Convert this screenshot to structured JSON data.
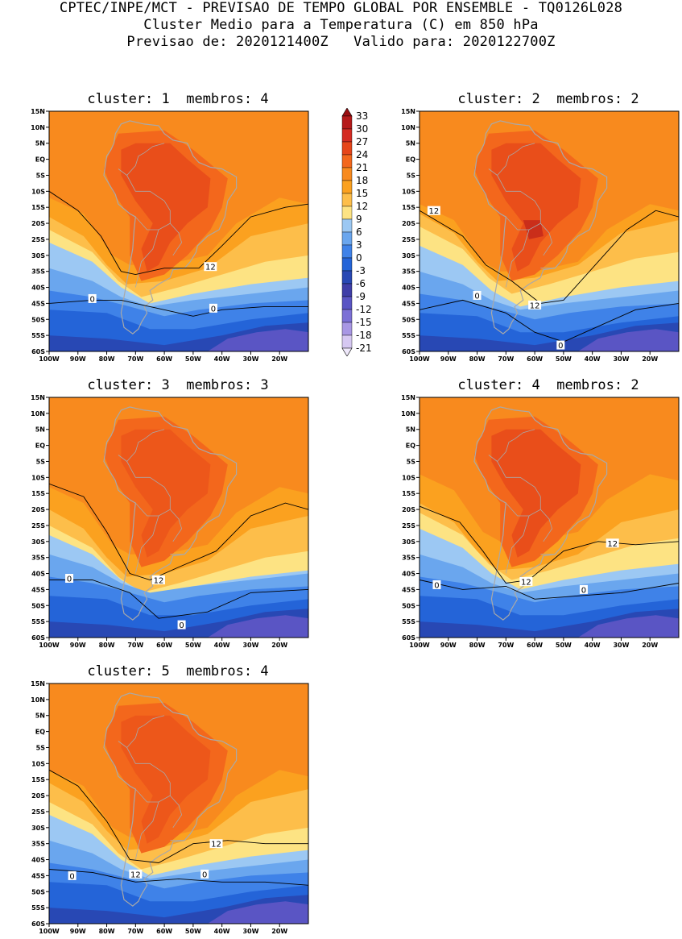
{
  "header": {
    "line1": "CPTEC/INPE/MCT - PREVISAO DE TEMPO GLOBAL POR ENSEMBLE - TQ0126L028",
    "line2": "Cluster Medio para a Temperatura (C) em 850 hPa",
    "line3": "Previsao de: 2020121400Z   Valido para: 2020122700Z"
  },
  "panels": [
    {
      "title": "cluster: 1  membros: 4",
      "contour_labels": [
        "12",
        "0",
        "0"
      ]
    },
    {
      "title": "cluster: 2  membros: 2",
      "contour_labels": [
        "12",
        "0",
        "12",
        "0"
      ]
    },
    {
      "title": "cluster: 3  membros: 3",
      "contour_labels": [
        "0",
        "12",
        "0"
      ]
    },
    {
      "title": "cluster: 4  membros: 2",
      "contour_labels": [
        "12",
        "0",
        "12",
        "0"
      ]
    },
    {
      "title": "cluster: 5  membros: 4",
      "contour_labels": [
        "12",
        "0",
        "12",
        "0"
      ]
    }
  ],
  "lat_ticks": [
    "15N",
    "10N",
    "5N",
    "EQ",
    "5S",
    "10S",
    "15S",
    "20S",
    "25S",
    "30S",
    "35S",
    "40S",
    "45S",
    "50S",
    "55S",
    "60S"
  ],
  "lon_ticks": [
    "100W",
    "90W",
    "80W",
    "70W",
    "60W",
    "50W",
    "40W",
    "30W",
    "20W"
  ],
  "colorbar": {
    "labels": [
      "33",
      "30",
      "27",
      "24",
      "21",
      "18",
      "15",
      "12",
      "9",
      "6",
      "3",
      "0",
      "-3",
      "-6",
      "-9",
      "-12",
      "-15",
      "-18",
      "-21"
    ],
    "colors": [
      "#9a0d10",
      "#b5191a",
      "#d42b22",
      "#e64519",
      "#f3671c",
      "#f88a1e",
      "#fba11f",
      "#fdbe4a",
      "#fde383",
      "#9cc8f3",
      "#6aa6ee",
      "#3f82e8",
      "#2464d8",
      "#2848b4",
      "#3f3ea8",
      "#5a55c4",
      "#7c70d6",
      "#a897e4",
      "#d6c8f2",
      "#efe8fb"
    ]
  }
}
